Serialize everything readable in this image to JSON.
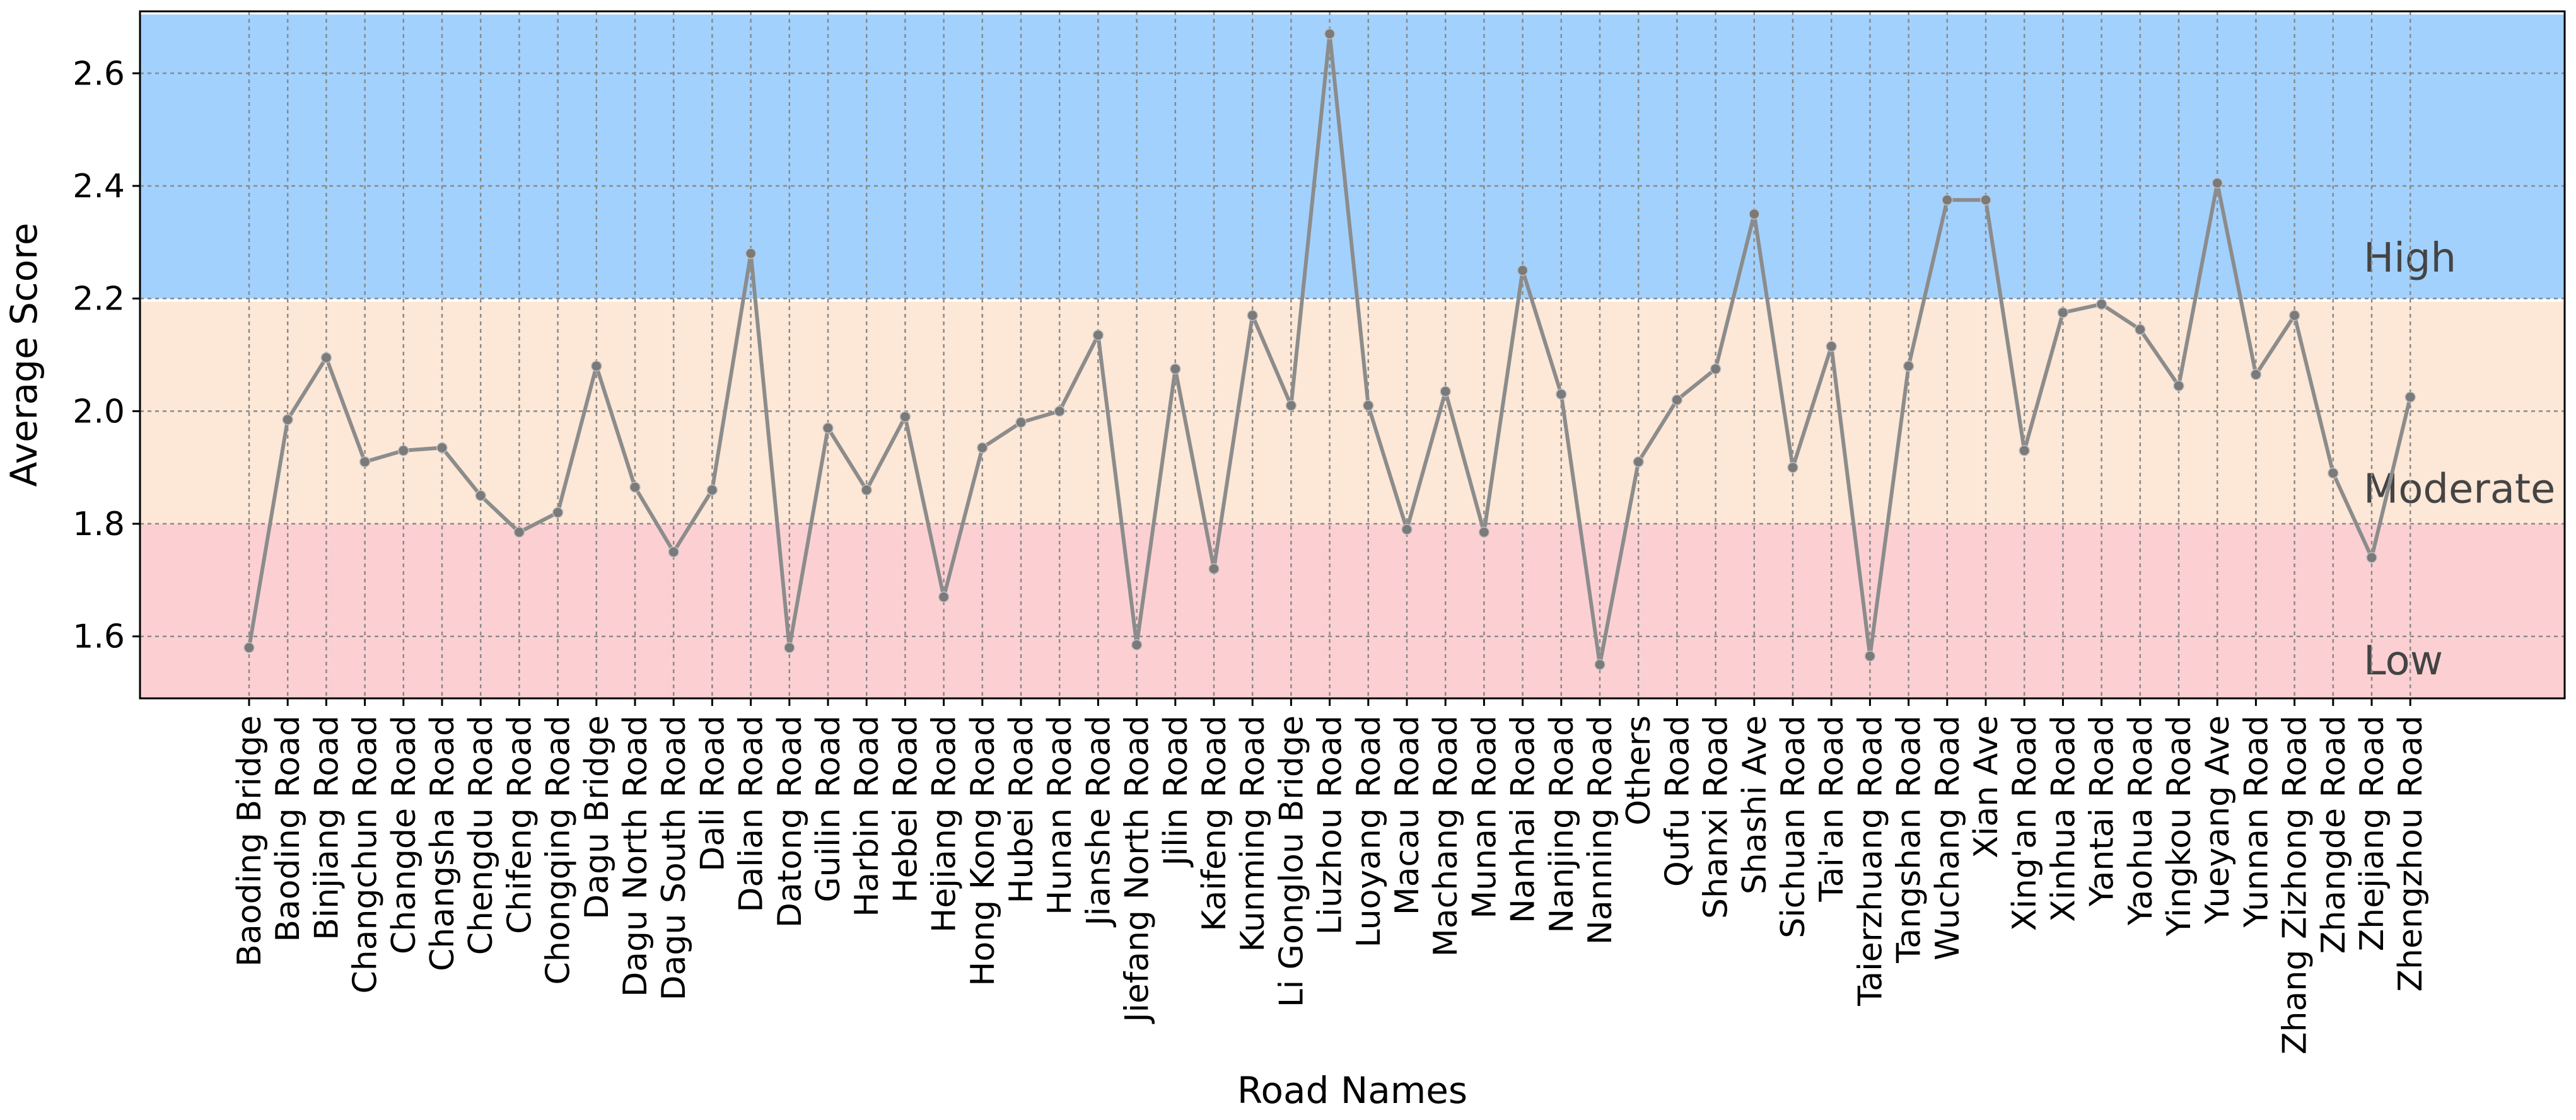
{
  "chart_data": {
    "type": "line",
    "title": "",
    "xlabel": "Road Names",
    "ylabel": "Average Score",
    "ylim": [
      1.49,
      2.71
    ],
    "yticks": [
      1.6,
      1.8,
      2.0,
      2.2,
      2.4,
      2.6
    ],
    "grid": true,
    "line_color": "#8c8c8c",
    "bands": [
      {
        "label": "Low",
        "from": 1.49,
        "to": 1.8,
        "color": "#fcd0d3"
      },
      {
        "label": "Moderate",
        "from": 1.8,
        "to": 2.2,
        "color": "#fde7d6"
      },
      {
        "label": "High",
        "from": 2.2,
        "to": 2.71,
        "color": "#a2d1fe"
      }
    ],
    "categories": [
      "Baoding Bridge",
      "Baoding Road",
      "Binjiang Road",
      "Changchun Road",
      "Changde Road",
      "Changsha Road",
      "Chengdu Road",
      "Chifeng Road",
      "Chongqing Road",
      "Dagu Bridge",
      "Dagu North Road",
      "Dagu South Road",
      "Dali Road",
      "Dalian Road",
      "Datong Road",
      "Guilin Road",
      "Harbin Road",
      "Hebei Road",
      "Hejiang Road",
      "Hong Kong Road",
      "Hubei Road",
      "Hunan Road",
      "Jianshe Road",
      "Jiefang North Road",
      "Jilin Road",
      "Kaifeng Road",
      "Kunming Road",
      "Li Gonglou Bridge",
      "Liuzhou Road",
      "Luoyang Road",
      "Macau Road",
      "Machang Road",
      "Munan Road",
      "Nanhai Road",
      "Nanjing Road",
      "Nanning Road",
      "Others",
      "Qufu Road",
      "Shanxi Road",
      "Shashi Ave",
      "Sichuan Road",
      "Tai'an Road",
      "Taierzhuang Road",
      "Tangshan Road",
      "Wuchang Road",
      "Xian Ave",
      "Xing'an Road",
      "Xinhua Road",
      "Yantai Road",
      "Yaohua Road",
      "Yingkou Road",
      "Yueyang Ave",
      "Yunnan Road",
      "Zhang Zizhong Road",
      "Zhangde Road",
      "Zhejiang Road",
      "Zhengzhou Road"
    ],
    "series": [
      {
        "values": [
          1.58,
          1.985,
          2.095,
          1.91,
          1.93,
          1.935,
          1.85,
          1.785,
          1.82,
          2.08,
          1.865,
          1.75,
          1.86,
          2.28,
          1.58,
          1.97,
          1.86,
          1.99,
          1.67,
          1.935,
          1.98,
          2.0,
          2.135,
          1.585,
          2.075,
          1.72,
          2.17,
          2.01,
          2.67,
          2.01,
          1.79,
          2.035,
          1.785,
          2.25,
          2.03,
          1.55,
          1.91,
          2.02,
          2.075,
          2.35,
          1.9,
          2.115,
          1.565,
          2.08,
          2.375,
          2.375,
          1.93,
          2.175,
          2.19,
          2.145,
          2.045,
          2.405,
          2.065,
          2.17,
          1.89,
          1.74,
          2.025
        ]
      }
    ]
  }
}
